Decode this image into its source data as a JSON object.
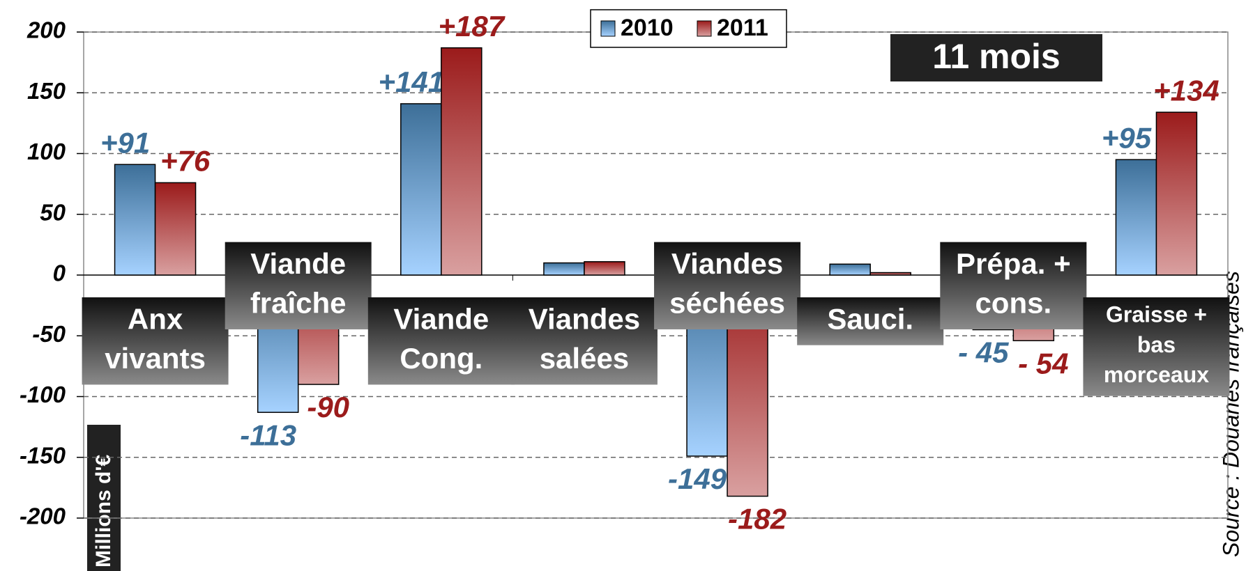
{
  "chart_data": {
    "type": "bar",
    "categories": [
      "Anx\nvivants",
      "Viande\nfraîche",
      "Viande\nCong.",
      "Viandes\nsalées",
      "Viandes\nséchées",
      "Sauci.",
      "Prépa. +\ncons.",
      "Graisse +\nbas\nmorceaux"
    ],
    "series": [
      {
        "name": "2010",
        "color": "#3d6f98",
        "values": [
          91,
          -113,
          141,
          10,
          -149,
          9,
          -45,
          95
        ],
        "value_labels": [
          "+91",
          "-113",
          "+141",
          null,
          "-149",
          null,
          "- 45",
          "+95"
        ]
      },
      {
        "name": "2011",
        "color": "#9b1b1b",
        "values": [
          76,
          -90,
          187,
          11,
          -182,
          2,
          -54,
          134
        ],
        "value_labels": [
          "+76",
          "-90",
          "+187",
          null,
          "-182",
          null,
          "- 54",
          "+134"
        ]
      }
    ],
    "ylim": [
      -200,
      200
    ],
    "yticks": [
      -200,
      -150,
      -100,
      -50,
      0,
      50,
      100,
      150,
      200
    ],
    "grid": true,
    "y_label": "Millions d'€",
    "legend": "top",
    "annotations": [
      "11 mois",
      "Source : Douanes françaises"
    ]
  }
}
